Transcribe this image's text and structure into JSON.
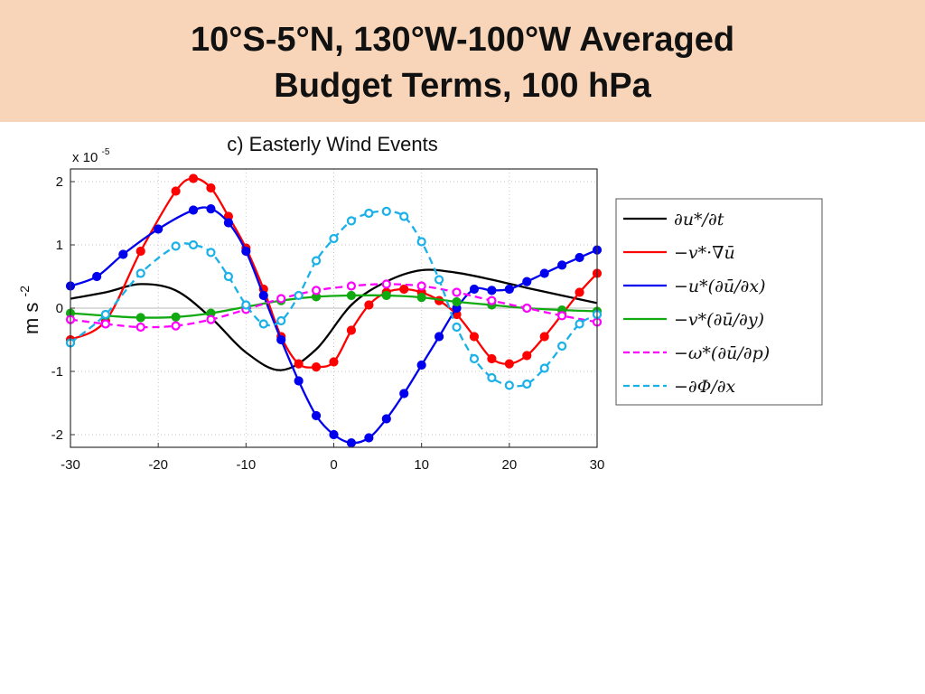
{
  "slide": {
    "title_line_1": "10°S-5°N, 130°W-100°W Averaged",
    "title_line_2": "Budget Terms, 100 hPa",
    "banner_color": "#f8d5b8"
  },
  "chart_data": {
    "type": "line",
    "title": "c) Easterly Wind Events",
    "ylabel": "m s",
    "ylabel_superscript": "-2",
    "y_scale_multiplier": "x 10",
    "y_scale_exponent": "-5",
    "xlim": [
      -30,
      30
    ],
    "ylim": [
      -2.2,
      2.2
    ],
    "xticks": [
      "-30",
      "-20",
      "-10",
      "0",
      "10",
      "20",
      "30"
    ],
    "yticks": [
      "-2",
      "-1",
      "0",
      "1",
      "2"
    ],
    "xtick_values": [
      -30,
      -20,
      -10,
      0,
      10,
      20,
      30
    ],
    "ytick_values": [
      -2,
      -1,
      0,
      1,
      2
    ],
    "grid": true,
    "legend_position": "right",
    "series": [
      {
        "name": "∂u*/∂t",
        "color": "#000000",
        "dash": "solid",
        "marker": "none",
        "x": [
          -30,
          -26,
          -22,
          -18,
          -14,
          -10,
          -6,
          -2,
          2,
          6,
          10,
          14,
          18,
          22,
          26,
          30
        ],
        "y": [
          0.15,
          0.25,
          0.38,
          0.28,
          -0.15,
          -0.7,
          -0.98,
          -0.65,
          0.05,
          0.42,
          0.6,
          0.56,
          0.45,
          0.32,
          0.2,
          0.08
        ]
      },
      {
        "name": "−v*·∇ū",
        "color": "#ff0000",
        "dash": "solid",
        "marker": "filled",
        "x": [
          -30,
          -26,
          -22,
          -18,
          -16,
          -14,
          -12,
          -10,
          -8,
          -6,
          -4,
          -2,
          0,
          2,
          4,
          6,
          8,
          10,
          12,
          14,
          16,
          18,
          20,
          22,
          24,
          26,
          28,
          30
        ],
        "y": [
          -0.5,
          -0.2,
          0.9,
          1.85,
          2.05,
          1.9,
          1.45,
          0.95,
          0.3,
          -0.45,
          -0.88,
          -0.93,
          -0.85,
          -0.35,
          0.05,
          0.25,
          0.3,
          0.25,
          0.12,
          -0.1,
          -0.45,
          -0.8,
          -0.88,
          -0.75,
          -0.45,
          -0.1,
          0.25,
          0.55
        ]
      },
      {
        "name": "−u*(∂ū/∂x)",
        "color": "#0000ee",
        "dash": "solid",
        "marker": "filled",
        "x": [
          -30,
          -27,
          -24,
          -20,
          -16,
          -14,
          -12,
          -10,
          -8,
          -6,
          -4,
          -2,
          0,
          2,
          4,
          6,
          8,
          10,
          12,
          14,
          16,
          18,
          20,
          22,
          24,
          26,
          28,
          30
        ],
        "y": [
          0.35,
          0.5,
          0.85,
          1.25,
          1.55,
          1.57,
          1.35,
          0.9,
          0.2,
          -0.5,
          -1.15,
          -1.7,
          -2.0,
          -2.13,
          -2.05,
          -1.75,
          -1.35,
          -0.9,
          -0.45,
          0.0,
          0.3,
          0.28,
          0.3,
          0.42,
          0.55,
          0.68,
          0.8,
          0.92
        ]
      },
      {
        "name": "−v*(∂ū/∂y)",
        "color": "#11aa11",
        "dash": "solid",
        "marker": "filled",
        "x": [
          -30,
          -26,
          -22,
          -18,
          -14,
          -10,
          -6,
          -2,
          2,
          6,
          10,
          14,
          18,
          22,
          26,
          30
        ],
        "y": [
          -0.08,
          -0.12,
          -0.15,
          -0.14,
          -0.08,
          0.02,
          0.12,
          0.18,
          0.2,
          0.2,
          0.17,
          0.1,
          0.05,
          0.0,
          -0.03,
          -0.05
        ]
      },
      {
        "name": "−ω*(∂ū/∂p)",
        "color": "#ff00ff",
        "dash": "dashed",
        "marker": "hollow",
        "x": [
          -30,
          -26,
          -22,
          -18,
          -14,
          -10,
          -6,
          -2,
          2,
          6,
          10,
          14,
          18,
          22,
          26,
          30
        ],
        "y": [
          -0.18,
          -0.25,
          -0.3,
          -0.28,
          -0.18,
          -0.02,
          0.15,
          0.28,
          0.35,
          0.38,
          0.35,
          0.25,
          0.12,
          0.0,
          -0.12,
          -0.22
        ]
      },
      {
        "name": "−∂Φ/∂x",
        "color": "#1ab0e8",
        "dash": "dashed",
        "marker": "hollow",
        "x": [
          -30,
          -26,
          -22,
          -18,
          -16,
          -14,
          -12,
          -10,
          -8,
          -6,
          -4,
          -2,
          0,
          2,
          4,
          6,
          8,
          10,
          12,
          14,
          16,
          18,
          20,
          22,
          24,
          26,
          28,
          30
        ],
        "y": [
          -0.55,
          -0.1,
          0.55,
          0.98,
          1.0,
          0.88,
          0.5,
          0.05,
          -0.25,
          -0.2,
          0.2,
          0.75,
          1.1,
          1.38,
          1.5,
          1.53,
          1.45,
          1.05,
          0.45,
          -0.3,
          -0.8,
          -1.1,
          -1.22,
          -1.2,
          -0.95,
          -0.6,
          -0.25,
          -0.1
        ]
      }
    ]
  }
}
